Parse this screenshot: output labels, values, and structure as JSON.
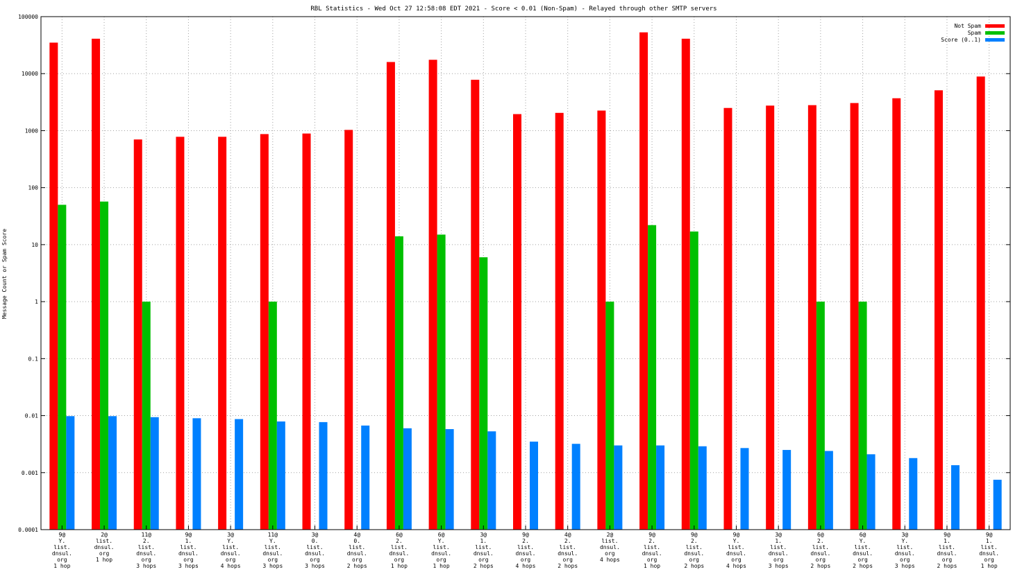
{
  "chart_data": {
    "type": "bar",
    "title": "RBL Statistics - Wed Oct 27 12:58:08 EDT 2021 - Score < 0.01 (Non-Spam) - Relayed through other SMTP servers",
    "ylabel": "Message Count or Spam Score",
    "xlabel": "",
    "y_scale": "log",
    "ylim": [
      0.0001,
      100000
    ],
    "y_ticks": [
      "0.0001",
      "0.001",
      "0.01",
      "0.1",
      "1",
      "10",
      "100",
      "1000",
      "10000",
      "100000"
    ],
    "grid": true,
    "legend_position": "top-right",
    "categories": [
      [
        "9@",
        "Y.",
        "list.",
        "dnsul.",
        "org",
        "1 hop"
      ],
      [
        "2@",
        "list.",
        "dnsul.",
        "org",
        "1 hop"
      ],
      [
        "11@",
        "2.",
        "list.",
        "dnsul.",
        "org",
        "3 hops"
      ],
      [
        "9@",
        "1.",
        "list.",
        "dnsul.",
        "org",
        "3 hops"
      ],
      [
        "3@",
        "Y.",
        "list.",
        "dnsul.",
        "org",
        "4 hops"
      ],
      [
        "11@",
        "Y.",
        "list.",
        "dnsul.",
        "org",
        "3 hops"
      ],
      [
        "3@",
        "0.",
        "list.",
        "dnsul.",
        "org",
        "3 hops"
      ],
      [
        "4@",
        "0.",
        "list.",
        "dnsul.",
        "org",
        "2 hops"
      ],
      [
        "6@",
        "2.",
        "list.",
        "dnsul.",
        "org",
        "1 hop"
      ],
      [
        "6@",
        "Y.",
        "list.",
        "dnsul.",
        "org",
        "1 hop"
      ],
      [
        "3@",
        "1.",
        "list.",
        "dnsul.",
        "org",
        "2 hops"
      ],
      [
        "9@",
        "2.",
        "list.",
        "dnsul.",
        "org",
        "4 hops"
      ],
      [
        "4@",
        "2.",
        "list.",
        "dnsul.",
        "org",
        "2 hops"
      ],
      [
        "2@",
        "list.",
        "dnsul.",
        "org",
        "4 hops"
      ],
      [
        "9@",
        "2.",
        "list.",
        "dnsul.",
        "org",
        "1 hop"
      ],
      [
        "9@",
        "2.",
        "list.",
        "dnsul.",
        "org",
        "2 hops"
      ],
      [
        "9@",
        "Y.",
        "list.",
        "dnsul.",
        "org",
        "4 hops"
      ],
      [
        "3@",
        "1.",
        "list.",
        "dnsul.",
        "org",
        "3 hops"
      ],
      [
        "6@",
        "2.",
        "list.",
        "dnsul.",
        "org",
        "2 hops"
      ],
      [
        "6@",
        "Y.",
        "list.",
        "dnsul.",
        "org",
        "2 hops"
      ],
      [
        "3@",
        "Y.",
        "list.",
        "dnsul.",
        "org",
        "3 hops"
      ],
      [
        "9@",
        "1.",
        "list.",
        "dnsul.",
        "org",
        "2 hops"
      ],
      [
        "9@",
        "1.",
        "list.",
        "dnsul.",
        "org",
        "1 hop"
      ]
    ],
    "series": [
      {
        "name": "Not Spam",
        "color": "#ff0000",
        "values": [
          35000,
          41000,
          700,
          780,
          780,
          870,
          890,
          1030,
          16000,
          17500,
          7800,
          1950,
          2050,
          2250,
          53000,
          41000,
          2500,
          2750,
          2800,
          3050,
          3700,
          5100,
          8900
        ]
      },
      {
        "name": "Spam",
        "color": "#00c000",
        "values": [
          50,
          57,
          1,
          null,
          null,
          1,
          null,
          null,
          14,
          15,
          6,
          null,
          null,
          1,
          22,
          17,
          null,
          null,
          1,
          1,
          null,
          null,
          null
        ]
      },
      {
        "name": "Score (0..1)",
        "color": "#0080ff",
        "values": [
          0.0098,
          0.0098,
          0.0094,
          0.009,
          0.0087,
          0.0079,
          0.0077,
          0.0067,
          0.006,
          0.0058,
          0.0053,
          0.0035,
          0.0032,
          0.003,
          0.003,
          0.0029,
          0.0027,
          0.0025,
          0.0024,
          0.0021,
          0.0018,
          0.00135,
          0.00075
        ]
      }
    ]
  }
}
